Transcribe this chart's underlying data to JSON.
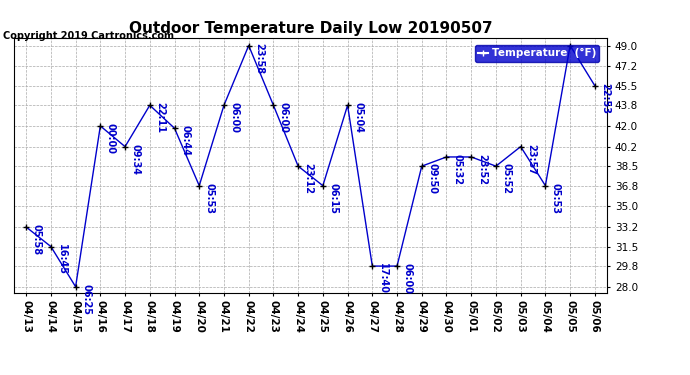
{
  "title": "Outdoor Temperature Daily Low 20190507",
  "copyright": "Copyright 2019 Cartronics.com",
  "legend_label": "Temperature  (°F)",
  "x_labels": [
    "04/13",
    "04/14",
    "04/15",
    "04/16",
    "04/17",
    "04/18",
    "04/19",
    "04/20",
    "04/21",
    "04/22",
    "04/23",
    "04/24",
    "04/25",
    "04/26",
    "04/27",
    "04/28",
    "04/29",
    "04/30",
    "05/01",
    "05/02",
    "05/03",
    "05/04",
    "05/05",
    "05/06"
  ],
  "y_values": [
    33.2,
    31.5,
    28.0,
    42.0,
    40.2,
    43.8,
    41.8,
    36.8,
    43.8,
    49.0,
    43.8,
    38.5,
    36.8,
    43.8,
    29.8,
    29.8,
    38.5,
    39.3,
    39.3,
    38.5,
    40.2,
    36.8,
    49.0,
    45.5
  ],
  "point_labels": [
    "05:58",
    "16:45",
    "06:25",
    "00:00",
    "09:34",
    "22:11",
    "06:44",
    "05:53",
    "06:00",
    "23:58",
    "06:00",
    "23:12",
    "06:15",
    "05:04",
    "17:40",
    "06:00",
    "09:50",
    "05:32",
    "23:52",
    "05:52",
    "23:57",
    "05:53",
    "",
    "22:53"
  ],
  "yticks": [
    28.0,
    29.8,
    31.5,
    33.2,
    35.0,
    36.8,
    38.5,
    40.2,
    42.0,
    43.8,
    45.5,
    47.2,
    49.0
  ],
  "ylim_min": 27.5,
  "ylim_max": 49.7,
  "line_color": "#0000cc",
  "marker_color": "#000000",
  "bg_color": "#ffffff",
  "grid_color": "#aaaaaa",
  "title_fontsize": 11,
  "label_fontsize": 7,
  "tick_fontsize": 7.5,
  "copyright_fontsize": 7,
  "legend_bg": "#0000cc",
  "legend_fg": "#ffffff"
}
